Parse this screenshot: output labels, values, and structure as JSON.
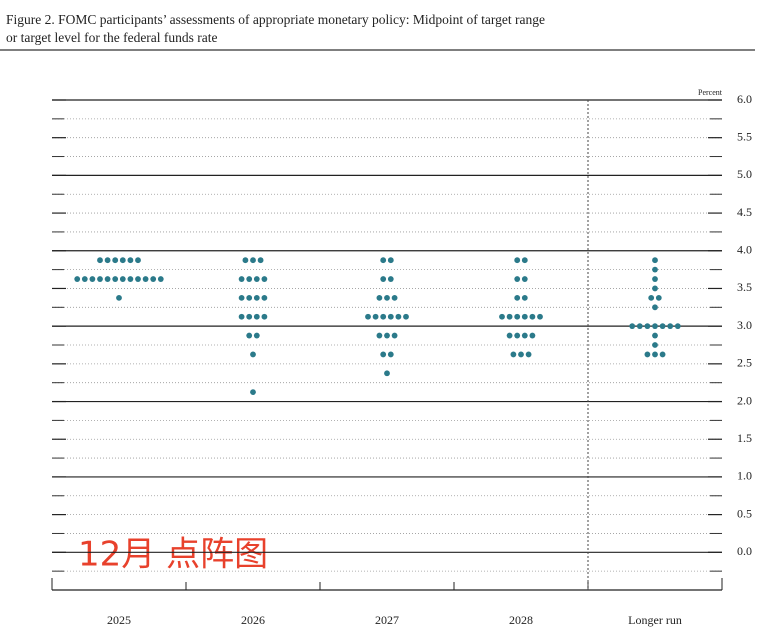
{
  "chart_data": {
    "type": "dot",
    "title": "Figure 2. FOMC participants’ assessments of appropriate monetary policy: Midpoint of target range",
    "subtitle": "or target level for the federal funds rate",
    "y_label": "Percent",
    "annotation": "12月 点阵图",
    "color": "#2b7a8a",
    "categories": [
      "2025",
      "2026",
      "2027",
      "2028",
      "Longer run"
    ],
    "values": [
      [
        3.875,
        3.875,
        3.875,
        3.875,
        3.875,
        3.875,
        3.625,
        3.625,
        3.625,
        3.625,
        3.625,
        3.625,
        3.625,
        3.625,
        3.625,
        3.625,
        3.625,
        3.625,
        3.375
      ],
      [
        3.875,
        3.875,
        3.875,
        3.625,
        3.625,
        3.625,
        3.625,
        3.375,
        3.375,
        3.375,
        3.375,
        3.125,
        3.125,
        3.125,
        3.125,
        2.875,
        2.875,
        2.625,
        2.125
      ],
      [
        3.875,
        3.875,
        3.625,
        3.625,
        3.375,
        3.375,
        3.375,
        3.125,
        3.125,
        3.125,
        3.125,
        3.125,
        3.125,
        2.875,
        2.875,
        2.875,
        2.625,
        2.625,
        2.375
      ],
      [
        3.875,
        3.875,
        3.625,
        3.625,
        3.375,
        3.375,
        3.125,
        3.125,
        3.125,
        3.125,
        3.125,
        3.125,
        2.875,
        2.875,
        2.875,
        2.875,
        2.625,
        2.625,
        2.625
      ],
      [
        3.875,
        3.75,
        3.625,
        3.5,
        3.375,
        3.375,
        3.25,
        3.0,
        3.0,
        3.0,
        3.0,
        3.0,
        3.0,
        3.0,
        2.875,
        2.75,
        2.625,
        2.625,
        2.625
      ]
    ],
    "ylim": [
      -0.5,
      6.0
    ],
    "yticks": [
      {
        "value": 0,
        "label": "0.0"
      },
      0.5,
      {
        "value": 1,
        "label": "1.0"
      },
      1.5,
      {
        "value": 2,
        "label": "2.0"
      },
      2.5,
      {
        "value": 3,
        "label": "3.0"
      },
      3.5,
      {
        "value": 4,
        "label": "4.0"
      },
      4.5,
      {
        "value": 5,
        "label": "5.0"
      },
      5.5,
      {
        "value": 6,
        "label": "6.0"
      }
    ],
    "minor_yticks": [
      -0.25,
      0.25,
      0.75,
      1.25,
      1.75,
      2.25,
      2.75,
      3.25,
      3.75,
      4.25,
      4.75,
      5.25,
      5.75
    ],
    "grid": true
  }
}
